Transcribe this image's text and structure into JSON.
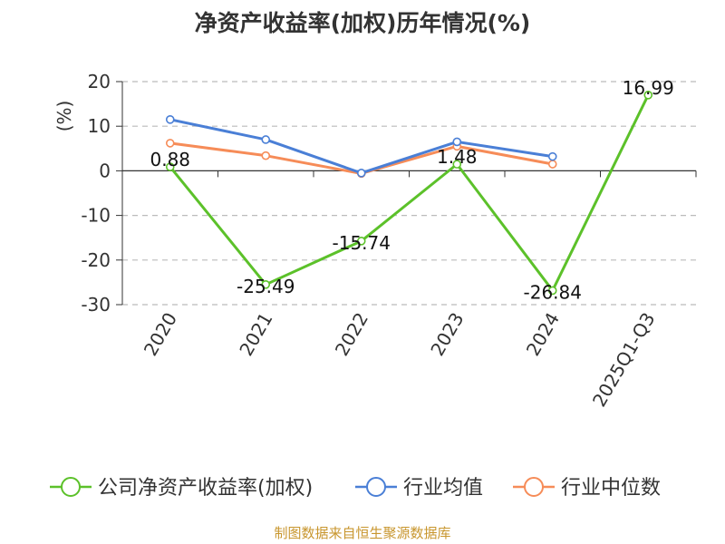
{
  "title": "净资产收益率(加权)历年情况(%)",
  "footer": "制图数据来自恒生聚源数据库",
  "colors": {
    "company": "#5cc12a",
    "industry_avg": "#4a7fd6",
    "industry_median": "#f68c58",
    "grid": "#bbbbbb",
    "axis": "#333333",
    "unit": "#cc0000"
  },
  "chart_data": {
    "type": "line",
    "title": "净资产收益率(加权)历年情况(%)",
    "ylabel": "(%)",
    "xlabel": "",
    "categories": [
      "2020",
      "2021",
      "2022",
      "2023",
      "2024",
      "2025Q1-Q3"
    ],
    "ylim": [
      -30,
      20
    ],
    "yticks": [
      20,
      10,
      0,
      -10,
      -20,
      -30
    ],
    "grid": true,
    "legend_position": "bottom",
    "series": [
      {
        "name": "公司净资产收益率(加权)",
        "key": "company",
        "values": [
          0.88,
          -25.49,
          -15.74,
          1.48,
          -26.84,
          16.99
        ],
        "labels": [
          "0.88",
          "-25.49",
          "-15.74",
          "1.48",
          "-26.84",
          "16.99"
        ]
      },
      {
        "name": "行业均值",
        "key": "industry_avg",
        "values": [
          11.5,
          7.0,
          -0.5,
          6.5,
          3.2,
          null
        ]
      },
      {
        "name": "行业中位数",
        "key": "industry_median",
        "values": [
          6.2,
          3.4,
          -0.6,
          5.5,
          1.5,
          null
        ]
      }
    ]
  }
}
